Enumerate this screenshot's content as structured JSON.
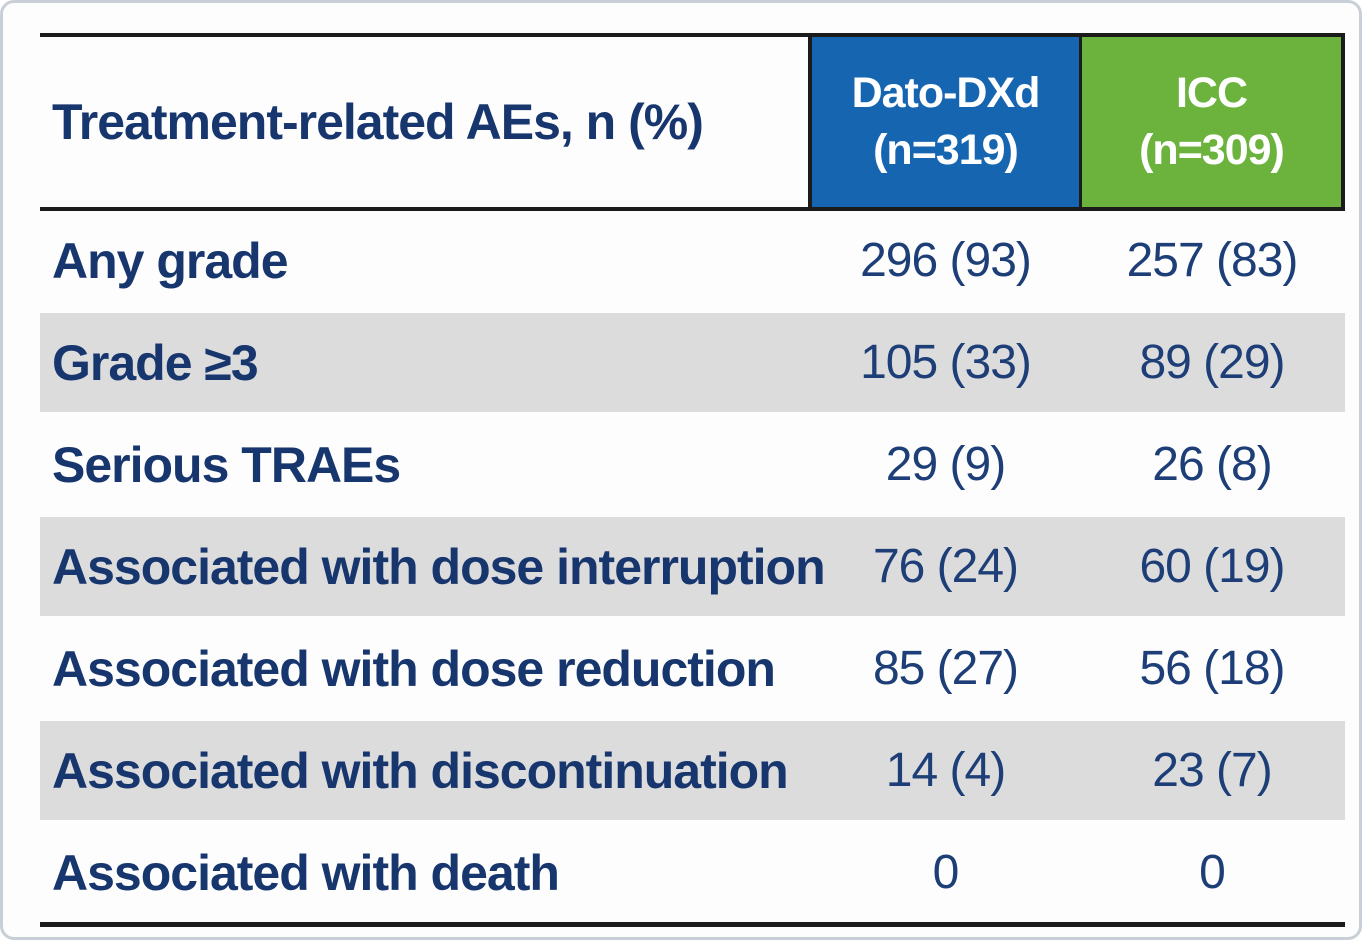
{
  "colors": {
    "dato_header_bg": "#1565b0",
    "icc_header_bg": "#6cb33e",
    "row_stripe_gray": "#dcdcdc",
    "label_navy": "#17366e",
    "value_navy": "#1d3e77",
    "rule_dark": "#1b1b1b",
    "header_text_white": "#ffffff"
  },
  "table": {
    "corner_header": "Treatment-related AEs, n (%)",
    "columns": [
      {
        "name": "Dato-DXd",
        "n_label": "(n=319)"
      },
      {
        "name": "ICC",
        "n_label": "(n=309)"
      }
    ],
    "rows": [
      {
        "label": "Any grade",
        "dato": "296 (93)",
        "icc": "257 (83)"
      },
      {
        "label": "Grade ≥3",
        "dato": "105 (33)",
        "icc": "89 (29)"
      },
      {
        "label": "Serious TRAEs",
        "dato": "29 (9)",
        "icc": "26 (8)"
      },
      {
        "label": "Associated with dose interruption",
        "dato": "76 (24)",
        "icc": "60 (19)"
      },
      {
        "label": "Associated with dose reduction",
        "dato": "85 (27)",
        "icc": "56 (18)"
      },
      {
        "label": "Associated with discontinuation",
        "dato": "14 (4)",
        "icc": "23 (7)"
      },
      {
        "label": "Associated with death",
        "dato": "0",
        "icc": "0"
      }
    ]
  },
  "chart_data": {
    "type": "table",
    "title": "Treatment-related AEs, n (%)",
    "columns": [
      "Treatment-related AEs, n (%)",
      "Dato-DXd (n=319)",
      "ICC (n=309)"
    ],
    "rows": [
      [
        "Any grade",
        "296 (93)",
        "257 (83)"
      ],
      [
        "Grade ≥3",
        "105 (33)",
        "89 (29)"
      ],
      [
        "Serious TRAEs",
        "29 (9)",
        "26 (8)"
      ],
      [
        "Associated with dose interruption",
        "76 (24)",
        "60 (19)"
      ],
      [
        "Associated with dose reduction",
        "85 (27)",
        "56 (18)"
      ],
      [
        "Associated with discontinuation",
        "14 (4)",
        "23 (7)"
      ],
      [
        "Associated with death",
        "0",
        "0"
      ]
    ],
    "groups": {
      "Dato-DXd": {
        "n": 319
      },
      "ICC": {
        "n": 309
      }
    },
    "legend_position": "none",
    "grid": false
  }
}
